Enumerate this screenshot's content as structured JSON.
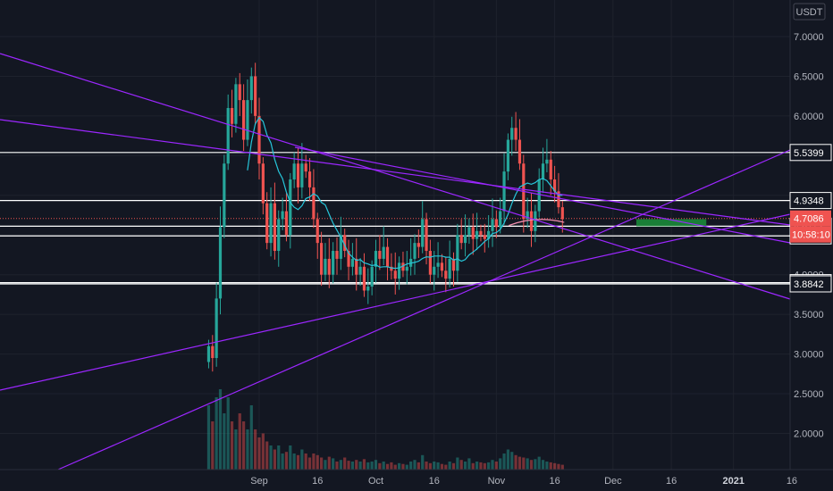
{
  "chart_data": {
    "type": "candlestick",
    "currency_label": "USDT",
    "y_ticks": [
      "7.0000",
      "6.5000",
      "6.0000",
      "5.5000",
      "5.0000",
      "4.5000",
      "4.0000",
      "3.5000",
      "3.0000",
      "2.5000",
      "2.0000"
    ],
    "x_ticks": [
      {
        "label": "Sep",
        "day": 0
      },
      {
        "label": "16",
        "day": 15
      },
      {
        "label": "Oct",
        "day": 30
      },
      {
        "label": "16",
        "day": 45
      },
      {
        "label": "Nov",
        "day": 61
      },
      {
        "label": "16",
        "day": 76
      },
      {
        "label": "Dec",
        "day": 91
      },
      {
        "label": "16",
        "day": 106
      },
      {
        "label": "2021",
        "day": 122,
        "bold": true
      },
      {
        "label": "16",
        "day": 137
      }
    ],
    "horizontal_levels": [
      {
        "label": "5.5399",
        "value": 5.5399
      },
      {
        "label": "4.9348",
        "value": 4.9348
      },
      {
        "label": "4.6112",
        "value": 4.6112
      },
      {
        "label": "4.4890",
        "value": 4.489
      },
      {
        "label": "3.9000",
        "value": 3.9
      },
      {
        "label": "3.8842",
        "value": 3.8842
      }
    ],
    "current_price": {
      "label": "4.7086",
      "value": 4.7086,
      "color": "#ef5350"
    },
    "countdown": {
      "label": "10:58:10",
      "color": "#ef5350"
    },
    "up_color": "#26a69a",
    "down_color": "#ef5350",
    "ma_color": "#26c6da",
    "ma2_color": "#f48fb1",
    "trendline_color": "#9c27ff",
    "target_zone": {
      "from_day": 97,
      "to_day": 115,
      "low": 4.61,
      "high": 4.7,
      "color": "#1b8a3a"
    },
    "closes": [
      3.1,
      2.95,
      3.7,
      4.6,
      5.4,
      6.1,
      5.9,
      6.4,
      6.2,
      5.7,
      6.2,
      6.5,
      6.0,
      5.4,
      4.9,
      4.4,
      4.9,
      4.3,
      4.7,
      4.8,
      4.5,
      5.2,
      5.4,
      5.1,
      5.4,
      5.3,
      5.1,
      4.7,
      4.4,
      4.0,
      4.2,
      4.0,
      4.3,
      4.2,
      4.5,
      4.3,
      4.1,
      4.2,
      4.0,
      4.1,
      3.8,
      3.85,
      4.1,
      4.3,
      4.2,
      4.35,
      4.1,
      4.05,
      3.95,
      4.15,
      4.05,
      4.1,
      4.2,
      4.4,
      4.35,
      4.7,
      4.3,
      4.0,
      4.1,
      4.15,
      4.05,
      3.95,
      4.2,
      4.05,
      4.5,
      4.4,
      4.5,
      4.6,
      4.45,
      4.55,
      4.5,
      4.45,
      4.55,
      4.7,
      4.6,
      4.8,
      5.3,
      5.7,
      5.85,
      5.7,
      5.4,
      4.7,
      4.8,
      4.55,
      4.8,
      5.2,
      5.4,
      5.45,
      5.2,
      5.05,
      4.85,
      4.7
    ],
    "volumes": [
      0.8,
      0.6,
      0.9,
      1.0,
      0.7,
      0.9,
      0.6,
      0.5,
      0.7,
      0.6,
      0.5,
      0.8,
      0.5,
      0.4,
      0.45,
      0.35,
      0.3,
      0.25,
      0.3,
      0.2,
      0.22,
      0.3,
      0.2,
      0.18,
      0.25,
      0.2,
      0.15,
      0.2,
      0.18,
      0.15,
      0.12,
      0.16,
      0.14,
      0.1,
      0.12,
      0.15,
      0.11,
      0.1,
      0.12,
      0.1,
      0.13,
      0.09,
      0.1,
      0.12,
      0.08,
      0.1,
      0.07,
      0.09,
      0.06,
      0.08,
      0.07,
      0.06,
      0.1,
      0.12,
      0.09,
      0.18,
      0.1,
      0.08,
      0.1,
      0.09,
      0.07,
      0.06,
      0.1,
      0.08,
      0.15,
      0.12,
      0.1,
      0.14,
      0.08,
      0.1,
      0.09,
      0.08,
      0.09,
      0.12,
      0.1,
      0.14,
      0.2,
      0.25,
      0.22,
      0.18,
      0.16,
      0.15,
      0.14,
      0.12,
      0.13,
      0.16,
      0.12,
      0.1,
      0.09,
      0.08,
      0.07,
      0.06
    ]
  }
}
